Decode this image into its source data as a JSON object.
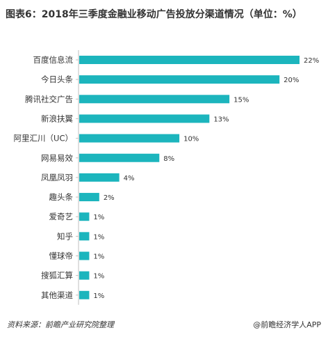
{
  "title": "图表6：2018年三季度金融业移动广告投放分渠道情况（单位：%）",
  "chart_data": {
    "type": "bar",
    "orientation": "horizontal",
    "categories": [
      "百度信息流",
      "今日头条",
      "腾讯社交广告",
      "新浪扶翼",
      "阿里汇川（UC）",
      "网易易效",
      "凤凰凤羽",
      "趣头条",
      "爱奇艺",
      "知乎",
      "懂球帝",
      "搜狐汇算",
      "其他渠道"
    ],
    "values": [
      22,
      20,
      15,
      13,
      10,
      8,
      4,
      2,
      1,
      1,
      1,
      1,
      1
    ],
    "value_labels": [
      "22%",
      "20%",
      "15%",
      "13%",
      "10%",
      "8%",
      "4%",
      "2%",
      "1%",
      "1%",
      "1%",
      "1%",
      "1%"
    ],
    "xlim": [
      0,
      22
    ],
    "bar_color": "#1cb5bd",
    "grid": false,
    "legend": "none"
  },
  "footer": {
    "source": "资料来源：前瞻产业研究院整理",
    "brand": "@前瞻经济学人APP"
  }
}
